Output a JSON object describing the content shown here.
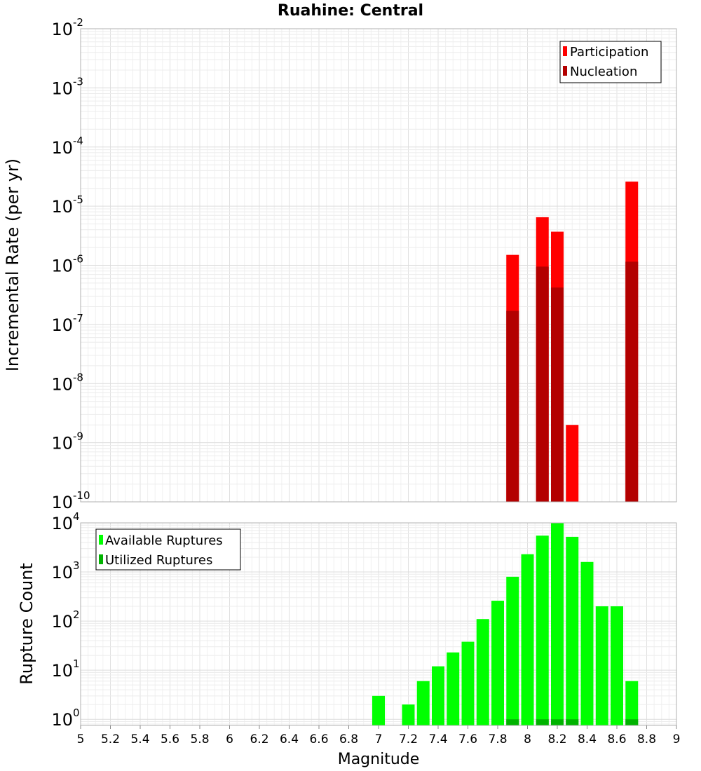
{
  "chart_data": [
    {
      "type": "bar",
      "title": "Ruahine: Central",
      "xlabel": "",
      "ylabel": "Incremental Rate (per yr)",
      "yscale": "log",
      "ylim": [
        1e-10,
        0.01
      ],
      "xlim": [
        5,
        9
      ],
      "grid": true,
      "legend_position": "top-right",
      "y_ticks": [
        {
          "base": "10",
          "exp": "-10"
        },
        {
          "base": "10",
          "exp": "-9"
        },
        {
          "base": "10",
          "exp": "-8"
        },
        {
          "base": "10",
          "exp": "-7"
        },
        {
          "base": "10",
          "exp": "-6"
        },
        {
          "base": "10",
          "exp": "-5"
        },
        {
          "base": "10",
          "exp": "-4"
        },
        {
          "base": "10",
          "exp": "-3"
        },
        {
          "base": "10",
          "exp": "-2"
        }
      ],
      "x": [
        7.9,
        8.1,
        8.2,
        8.3,
        8.7
      ],
      "series": [
        {
          "name": "Participation",
          "color": "#ff0000",
          "values": [
            1.5e-06,
            6.5e-06,
            3.7e-06,
            2e-09,
            2.6e-05
          ]
        },
        {
          "name": "Nucleation",
          "color": "#b30000",
          "values": [
            1.7e-07,
            9.5e-07,
            4.2e-07,
            null,
            1.15e-06
          ]
        }
      ]
    },
    {
      "type": "bar",
      "xlabel": "Magnitude",
      "ylabel": "Rupture Count",
      "yscale": "log",
      "ylim": [
        0.75,
        10000
      ],
      "xlim": [
        5,
        9
      ],
      "grid": true,
      "legend_position": "top-left",
      "y_ticks": [
        {
          "base": "10",
          "exp": "0"
        },
        {
          "base": "10",
          "exp": "1"
        },
        {
          "base": "10",
          "exp": "2"
        },
        {
          "base": "10",
          "exp": "3"
        },
        {
          "base": "10",
          "exp": "4"
        }
      ],
      "x_tick_labels": [
        "5",
        "5.2",
        "5.4",
        "5.6",
        "5.8",
        "6",
        "6.2",
        "6.4",
        "6.6",
        "6.8",
        "7",
        "7.2",
        "7.4",
        "7.6",
        "7.8",
        "8",
        "8.2",
        "8.4",
        "8.6",
        "8.8",
        "9"
      ],
      "x": [
        7.0,
        7.2,
        7.3,
        7.4,
        7.5,
        7.6,
        7.7,
        7.8,
        7.9,
        8.0,
        8.1,
        8.2,
        8.3,
        8.4,
        8.5,
        8.6,
        8.7
      ],
      "series": [
        {
          "name": "Available Ruptures",
          "color": "#00ff00",
          "values": [
            3,
            2,
            6,
            12,
            23,
            38,
            110,
            260,
            800,
            2300,
            5500,
            10000,
            5200,
            1600,
            200,
            200,
            6
          ]
        },
        {
          "name": "Utilized Ruptures",
          "color": "#00b300",
          "values": [
            null,
            null,
            null,
            null,
            null,
            null,
            null,
            null,
            1,
            null,
            1,
            1,
            1,
            null,
            null,
            null,
            1
          ]
        }
      ]
    }
  ]
}
